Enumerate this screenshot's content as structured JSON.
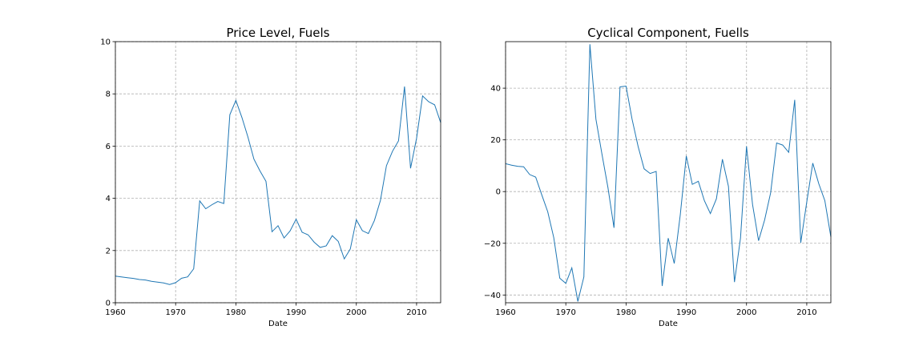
{
  "chart_data": [
    {
      "type": "line",
      "title": "Price Level, Fuels",
      "xlabel": "Date",
      "ylabel": "",
      "xlim": [
        1960,
        2014
      ],
      "ylim": [
        0,
        10
      ],
      "xticks": [
        1960,
        1970,
        1980,
        1990,
        2000,
        2010
      ],
      "yticks": [
        0,
        2,
        4,
        6,
        8,
        10
      ],
      "grid": true,
      "color": "#1f77b4",
      "series": [
        {
          "x": [
            1960,
            1961,
            1962,
            1963,
            1964,
            1965,
            1966,
            1967,
            1968,
            1969,
            1970,
            1971,
            1972,
            1973,
            1974,
            1975,
            1976,
            1977,
            1978,
            1979,
            1980,
            1981,
            1982,
            1983,
            1984,
            1985,
            1986,
            1987,
            1988,
            1989,
            1990,
            1991,
            1992,
            1993,
            1994,
            1995,
            1996,
            1997,
            1998,
            1999,
            2000,
            2001,
            2002,
            2003,
            2004,
            2005,
            2006,
            2007,
            2008,
            2009,
            2010,
            2011,
            2012,
            2013,
            2014
          ],
          "values": [
            1.02,
            0.99,
            0.96,
            0.93,
            0.89,
            0.87,
            0.82,
            0.79,
            0.76,
            0.7,
            0.77,
            0.94,
            0.99,
            1.3,
            3.9,
            3.6,
            3.75,
            3.88,
            3.8,
            7.2,
            7.75,
            7.1,
            6.35,
            5.5,
            5.05,
            4.65,
            2.72,
            2.95,
            2.48,
            2.75,
            3.2,
            2.7,
            2.6,
            2.32,
            2.12,
            2.18,
            2.57,
            2.35,
            1.68,
            2.06,
            3.18,
            2.76,
            2.65,
            3.15,
            3.92,
            5.25,
            5.8,
            6.2,
            8.28,
            5.15,
            6.3,
            7.92,
            7.7,
            7.58,
            6.9
          ]
        }
      ]
    },
    {
      "type": "line",
      "title": "Cyclical Component, Fuells",
      "xlabel": "Date",
      "ylabel": "",
      "xlim": [
        1960,
        2014
      ],
      "ylim": [
        -43,
        58
      ],
      "xticks": [
        1960,
        1970,
        1980,
        1990,
        2000,
        2010
      ],
      "yticks": [
        -40,
        -20,
        0,
        20,
        40
      ],
      "grid": true,
      "color": "#1f77b4",
      "series": [
        {
          "x": [
            1960,
            1961,
            1962,
            1963,
            1964,
            1965,
            1966,
            1967,
            1968,
            1969,
            1970,
            1971,
            1972,
            1973,
            1974,
            1975,
            1976,
            1977,
            1978,
            1979,
            1980,
            1981,
            1982,
            1983,
            1984,
            1985,
            1986,
            1987,
            1988,
            1989,
            1990,
            1991,
            1992,
            1993,
            1994,
            1995,
            1996,
            1997,
            1998,
            1999,
            2000,
            2001,
            2002,
            2003,
            2004,
            2005,
            2006,
            2007,
            2008,
            2009,
            2010,
            2011,
            2012,
            2013,
            2014
          ],
          "values": [
            10.8,
            10.2,
            9.8,
            9.6,
            6.6,
            5.6,
            -1.2,
            -7.8,
            -17.8,
            -33.5,
            -35.5,
            -29.5,
            -42.5,
            -33.0,
            57.0,
            28.0,
            14.5,
            1.5,
            -14.0,
            40.5,
            40.8,
            28.0,
            17.5,
            8.8,
            7.0,
            7.8,
            -36.5,
            -18.0,
            -27.8,
            -9.0,
            13.8,
            2.8,
            4.0,
            -3.5,
            -8.5,
            -2.8,
            12.5,
            2.0,
            -35.0,
            -18.0,
            17.5,
            -5.0,
            -19.0,
            -11.0,
            -0.5,
            18.8,
            18.0,
            15.2,
            35.5,
            -19.8,
            -4.0,
            11.0,
            3.0,
            -3.5,
            -17.5
          ]
        }
      ]
    }
  ]
}
